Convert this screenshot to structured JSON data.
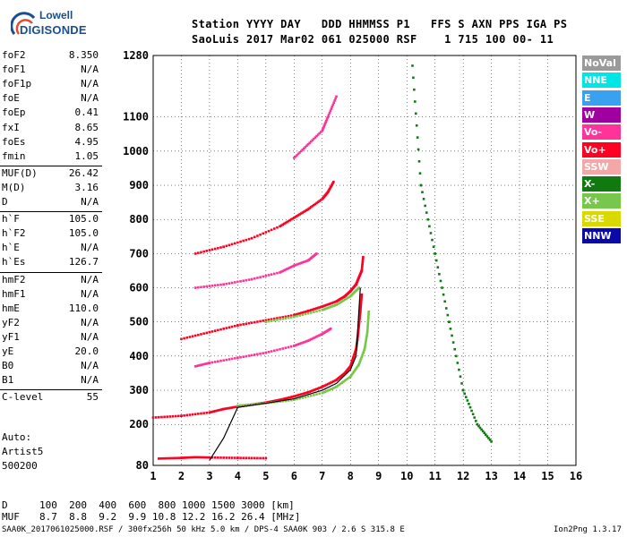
{
  "logo": {
    "top": "Lowell",
    "main": "DIGISONDE"
  },
  "header": {
    "line1": "Station YYYY DAY   DDD HHMMSS P1   FFS S AXN PPS IGA PS",
    "line2": "SaoLuis 2017 Mar02 061 025000 RSF    1 715 100 00- 11"
  },
  "params": [
    {
      "k": "foF2",
      "v": "8.350"
    },
    {
      "k": "foF1",
      "v": "N/A"
    },
    {
      "k": "foF1p",
      "v": "N/A"
    },
    {
      "k": "foE",
      "v": "N/A"
    },
    {
      "k": "foEp",
      "v": "0.41"
    },
    {
      "k": "fxI",
      "v": "8.65"
    },
    {
      "k": "foEs",
      "v": "4.95"
    },
    {
      "k": "fmin",
      "v": "1.05"
    },
    {
      "k": "MUF(D)",
      "v": "26.42"
    },
    {
      "k": "M(D)",
      "v": "3.16"
    },
    {
      "k": "D",
      "v": "N/A"
    },
    {
      "k": "h`F",
      "v": "105.0"
    },
    {
      "k": "h`F2",
      "v": "105.0"
    },
    {
      "k": "h`E",
      "v": "N/A"
    },
    {
      "k": "h`Es",
      "v": "126.7"
    },
    {
      "k": "hmF2",
      "v": "N/A"
    },
    {
      "k": "hmF1",
      "v": "N/A"
    },
    {
      "k": "hmE",
      "v": "110.0"
    },
    {
      "k": "yF2",
      "v": "N/A"
    },
    {
      "k": "yF1",
      "v": "N/A"
    },
    {
      "k": "yE",
      "v": "20.0"
    },
    {
      "k": "B0",
      "v": "N/A"
    },
    {
      "k": "B1",
      "v": "N/A"
    },
    {
      "k": "C-level",
      "v": "55"
    }
  ],
  "scaling": {
    "line1": "Auto:",
    "line2": "Artist5",
    "line3": "500200"
  },
  "legend": [
    {
      "label": "NoVal",
      "color": "#9a9a9a"
    },
    {
      "label": "NNE",
      "color": "#00e5e5"
    },
    {
      "label": "E",
      "color": "#3aa0f0"
    },
    {
      "label": "W",
      "color": "#a000a0"
    },
    {
      "label": "Vo-",
      "color": "#ff3399"
    },
    {
      "label": "Vo+",
      "color": "#ff0022"
    },
    {
      "label": "SSW",
      "color": "#f4a7a7"
    },
    {
      "label": "X-",
      "color": "#107a10"
    },
    {
      "label": "X+",
      "color": "#77c74d"
    },
    {
      "label": "SSE",
      "color": "#d9d900"
    },
    {
      "label": "NNW",
      "color": "#0a0aa8"
    }
  ],
  "muf_table": {
    "d_label": "D",
    "d_values": "100  200  400  600  800 1000 1500 3000 [km]",
    "m_label": "MUF",
    "m_values": "8.7  8.8  9.2  9.9 10.8 12.2 16.2 26.4 [MHz]"
  },
  "footer": {
    "left": "SAA0K_2017061025000.RSF / 300fx256h 50 kHz 5.0 km / DPS-4 SAA0K 903 / 2.6 S 315.8 E",
    "right": "Ion2Png 1.3.17"
  },
  "chart_data": {
    "type": "scatter",
    "title": "",
    "xlabel": "",
    "ylabel": "",
    "xlim": [
      1,
      16
    ],
    "ylim": [
      80,
      1280
    ],
    "x_ticks": [
      1,
      2,
      3,
      4,
      5,
      6,
      7,
      8,
      9,
      10,
      11,
      12,
      13,
      14,
      15,
      16
    ],
    "y_ticks": [
      80,
      200,
      300,
      400,
      500,
      600,
      700,
      800,
      900,
      1000,
      1100,
      1280
    ],
    "grid": true,
    "legend_position": "right",
    "series": [
      {
        "name": "Vo+",
        "color": "#ff0022",
        "traces": [
          {
            "x": [
              1.0,
              2.0,
              3.0,
              3.5,
              4.0,
              4.5,
              5.0,
              5.5,
              6.0,
              6.5,
              7.0,
              7.5,
              7.8,
              8.0,
              8.1,
              8.2,
              8.25,
              8.3,
              8.35,
              8.4
            ],
            "y": [
              220,
              225,
              235,
              245,
              252,
              258,
              264,
              272,
              282,
              294,
              310,
              330,
              350,
              370,
              395,
              420,
              450,
              490,
              530,
              580
            ]
          },
          {
            "x": [
              2.0,
              3.0,
              4.0,
              5.0,
              6.0,
              6.5,
              7.0,
              7.5,
              7.8,
              8.0,
              8.2,
              8.3,
              8.4,
              8.45
            ],
            "y": [
              450,
              470,
              490,
              505,
              520,
              532,
              545,
              560,
              575,
              590,
              610,
              630,
              650,
              690
            ]
          },
          {
            "x": [
              2.5,
              3.5,
              4.5,
              5.5,
              6.0,
              6.5,
              7.0,
              7.2,
              7.4
            ],
            "y": [
              700,
              720,
              745,
              780,
              805,
              830,
              860,
              880,
              910
            ]
          },
          {
            "x": [
              1.2,
              2.0,
              2.5,
              3.0,
              4.0,
              5.0
            ],
            "y": [
              100,
              102,
              104,
              103,
              102,
              101
            ]
          }
        ]
      },
      {
        "name": "Vo-",
        "color": "#ff3399",
        "traces": [
          {
            "x": [
              2.5,
              3.0,
              4.0,
              5.0,
              6.0,
              6.5,
              7.0,
              7.3
            ],
            "y": [
              370,
              380,
              395,
              410,
              430,
              445,
              465,
              480
            ]
          },
          {
            "x": [
              2.5,
              3.5,
              4.5,
              5.5,
              6.0,
              6.5,
              6.8
            ],
            "y": [
              600,
              610,
              625,
              645,
              665,
              680,
              700
            ]
          },
          {
            "x": [
              6.0,
              6.5,
              7.0,
              7.2,
              7.5
            ],
            "y": [
              980,
              1020,
              1060,
              1100,
              1160
            ]
          }
        ]
      },
      {
        "name": "X+",
        "color": "#77c74d",
        "traces": [
          {
            "x": [
              4.0,
              5.0,
              6.0,
              7.0,
              7.5,
              8.0,
              8.3,
              8.5,
              8.6,
              8.65
            ],
            "y": [
              255,
              262,
              272,
              292,
              310,
              340,
              375,
              420,
              470,
              530
            ]
          },
          {
            "x": [
              5.0,
              6.0,
              7.0,
              7.5,
              8.0,
              8.3
            ],
            "y": [
              500,
              515,
              535,
              550,
              575,
              600
            ]
          }
        ]
      },
      {
        "name": "X-",
        "color": "#107a10",
        "traces": [
          {
            "x": [
              10.2,
              10.5,
              11.0,
              11.5,
              12.0,
              12.5,
              13.0
            ],
            "y": [
              1250,
              900,
              700,
              500,
              300,
              200,
              150
            ]
          }
        ]
      }
    ]
  }
}
